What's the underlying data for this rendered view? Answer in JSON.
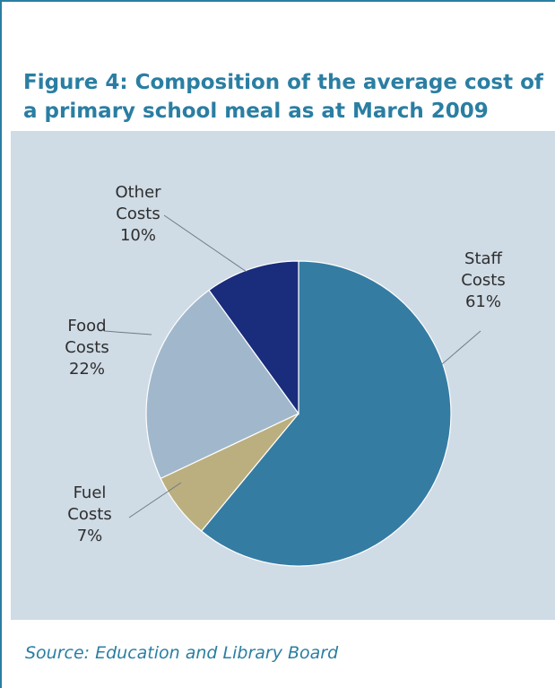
{
  "title": "Figure 4: Composition of the average cost of a primary school meal as at March 2009",
  "source": "Source: Education and Library Board",
  "chart_data": {
    "type": "pie",
    "slices": [
      {
        "label_lines": [
          "Staff",
          "Costs"
        ],
        "value": 61,
        "value_label": "61%",
        "color": "#357ca3"
      },
      {
        "label_lines": [
          "Fuel",
          "Costs"
        ],
        "value": 7,
        "value_label": "7%",
        "color": "#bbaf7f"
      },
      {
        "label_lines": [
          "Food",
          "Costs"
        ],
        "value": 22,
        "value_label": "22%",
        "color": "#a1b8cc"
      },
      {
        "label_lines": [
          "Other",
          "Costs"
        ],
        "value": 10,
        "value_label": "10%",
        "color": "#1a2c7c"
      }
    ],
    "legend": "none (labels beside slices)"
  }
}
